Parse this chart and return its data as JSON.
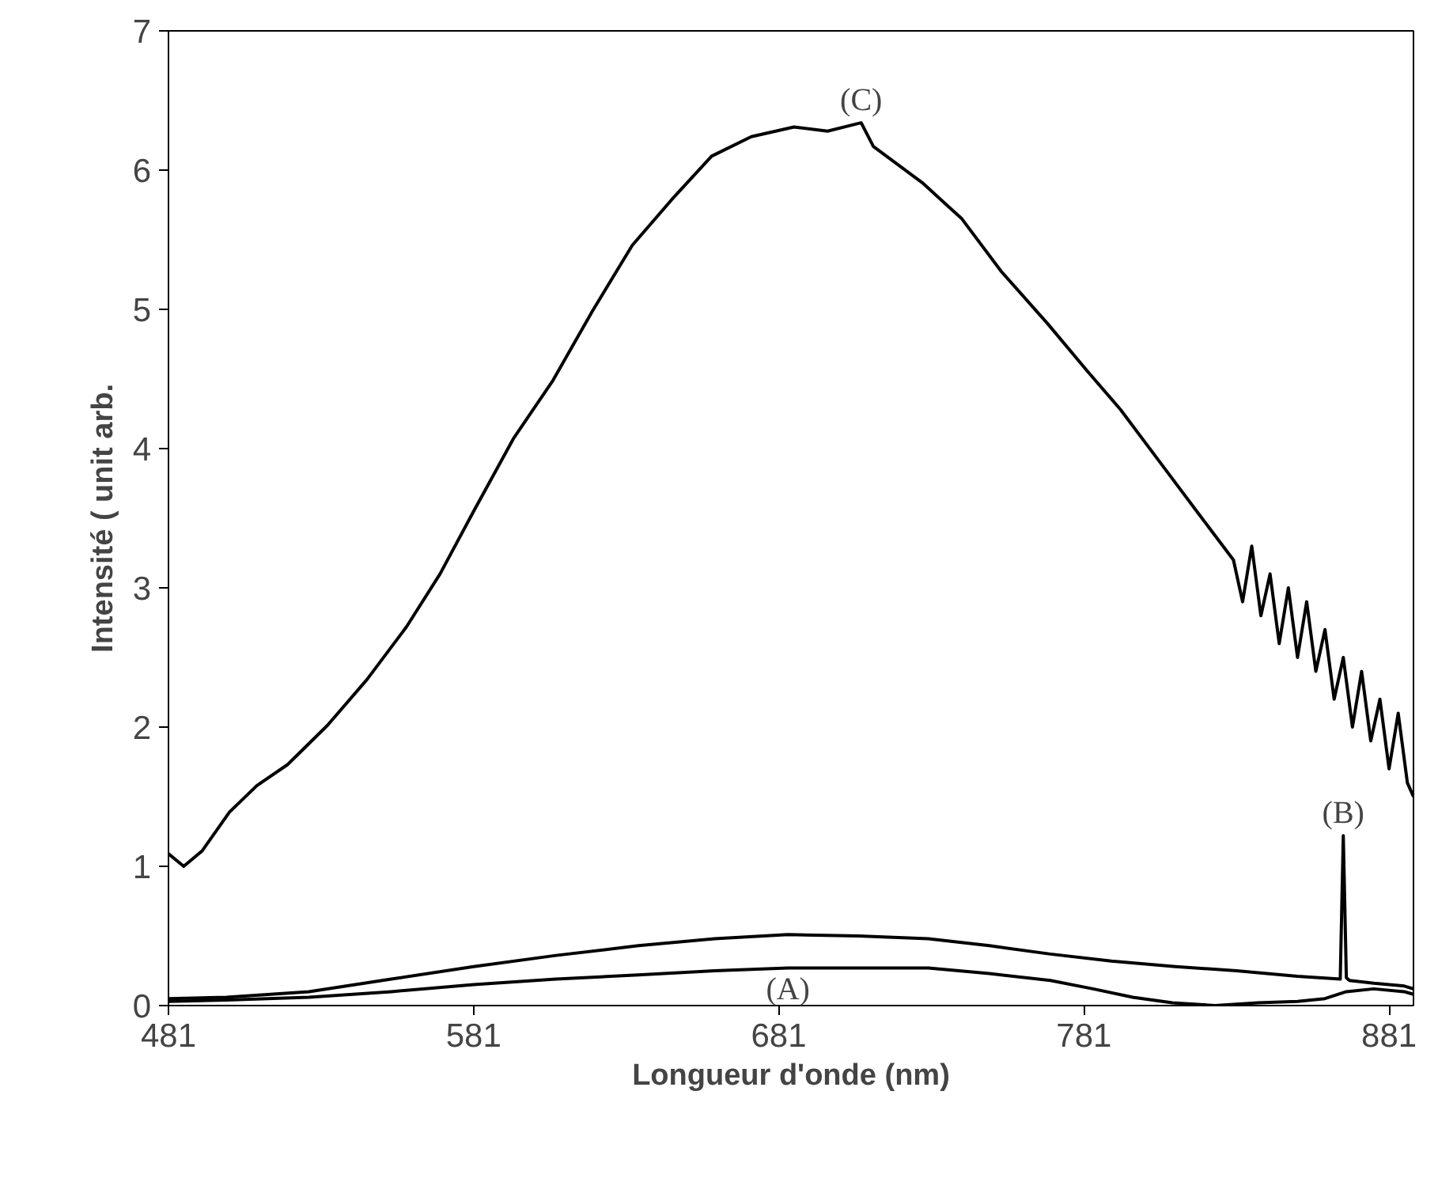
{
  "chart_data": {
    "type": "line",
    "xlabel": "Longueur d'onde (nm)",
    "ylabel": "Intensité ( unit arb.",
    "xlim": [
      481,
      889
    ],
    "xticks": [
      481,
      581,
      681,
      781,
      881
    ],
    "ylim": [
      0,
      7
    ],
    "yticks": [
      0,
      1,
      2,
      3,
      4,
      5,
      6,
      7
    ],
    "grid": false,
    "legend": false,
    "marker": "none",
    "line_style": "solid",
    "series": [
      {
        "name": "(C)",
        "color": "#000000",
        "x": [
          481,
          486,
          492,
          501,
          510,
          520,
          533,
          546,
          559,
          570,
          581,
          594,
          607,
          620,
          633,
          646,
          659,
          672,
          686,
          697,
          708,
          712,
          728,
          741,
          754,
          769,
          782,
          793,
          806,
          819,
          830,
          833,
          836,
          839,
          842,
          845,
          848,
          851,
          854,
          857,
          860,
          863,
          866,
          869,
          872,
          875,
          878,
          881,
          884,
          887,
          889
        ],
        "values": [
          1.09,
          1.0,
          1.11,
          1.39,
          1.58,
          1.73,
          2.01,
          2.34,
          2.72,
          3.1,
          3.55,
          4.07,
          4.49,
          4.99,
          5.46,
          5.79,
          6.1,
          6.24,
          6.31,
          6.28,
          6.34,
          6.17,
          5.91,
          5.65,
          5.27,
          4.9,
          4.56,
          4.28,
          3.9,
          3.52,
          3.2,
          2.9,
          3.3,
          2.8,
          3.1,
          2.6,
          3.0,
          2.5,
          2.9,
          2.4,
          2.7,
          2.2,
          2.5,
          2.0,
          2.4,
          1.9,
          2.2,
          1.7,
          2.1,
          1.6,
          1.5
        ]
      },
      {
        "name": "(B)",
        "color": "#000000",
        "x": [
          481,
          500,
          527,
          554,
          581,
          608,
          635,
          660,
          684,
          707,
          730,
          750,
          770,
          790,
          811,
          831,
          851,
          865,
          866,
          867,
          868,
          876,
          886,
          889
        ],
        "values": [
          0.05,
          0.06,
          0.1,
          0.19,
          0.28,
          0.36,
          0.43,
          0.48,
          0.51,
          0.5,
          0.48,
          0.43,
          0.37,
          0.32,
          0.28,
          0.25,
          0.21,
          0.19,
          1.22,
          0.2,
          0.18,
          0.16,
          0.14,
          0.12
        ]
      },
      {
        "name": "(A)",
        "color": "#000000",
        "x": [
          481,
          500,
          527,
          554,
          581,
          608,
          635,
          660,
          684,
          707,
          730,
          750,
          770,
          784,
          797,
          810,
          824,
          838,
          851,
          860,
          867,
          876,
          886,
          889
        ],
        "values": [
          0.03,
          0.04,
          0.06,
          0.1,
          0.15,
          0.19,
          0.22,
          0.25,
          0.27,
          0.27,
          0.27,
          0.23,
          0.18,
          0.12,
          0.06,
          0.02,
          0.0,
          0.02,
          0.03,
          0.05,
          0.1,
          0.12,
          0.1,
          0.08
        ]
      }
    ]
  }
}
